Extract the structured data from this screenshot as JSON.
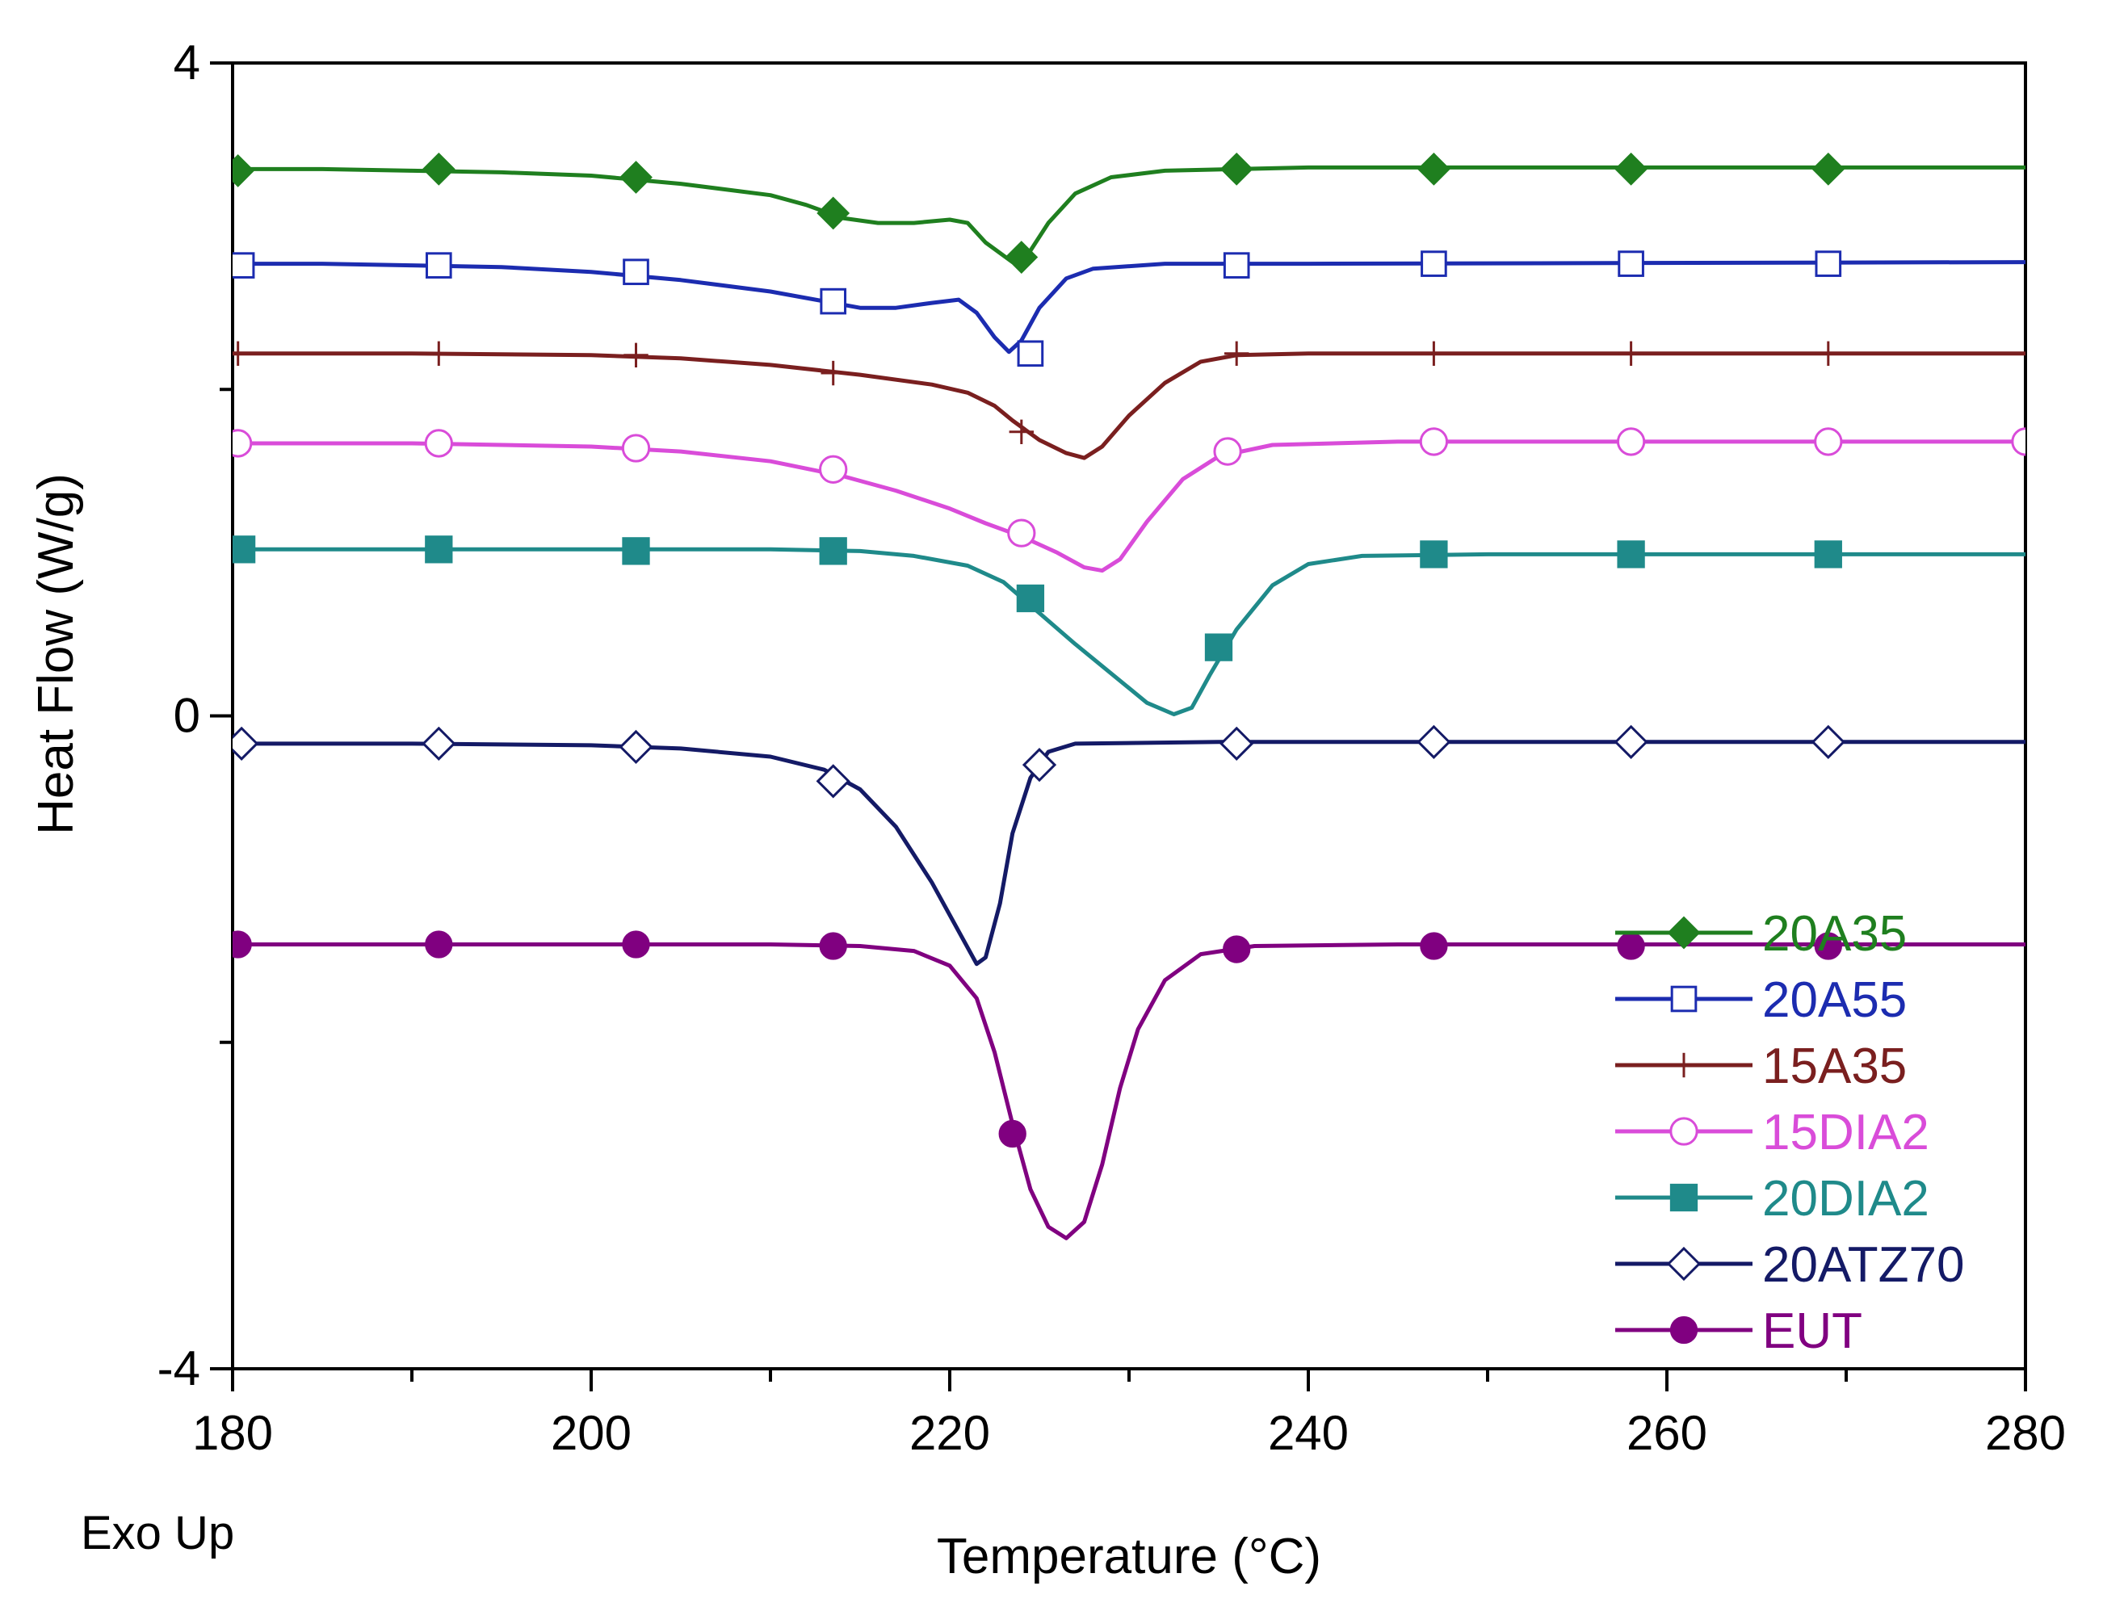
{
  "chart_data": {
    "type": "line",
    "title": "",
    "xlabel": "Temperature (°C)",
    "ylabel": "Heat Flow (W/g)",
    "annotation": "Exo Up",
    "xlim": [
      180,
      280
    ],
    "ylim": [
      -4,
      4
    ],
    "x_ticks": [
      180,
      200,
      220,
      240,
      260,
      280
    ],
    "x_tick_labels": [
      "180",
      "200",
      "220",
      "240",
      "260",
      "280"
    ],
    "y_ticks": [
      -4,
      0,
      4
    ],
    "y_tick_labels": [
      "-4",
      "0",
      "4"
    ],
    "grid": false,
    "legend_position": "bottom-right",
    "series": [
      {
        "name": "20A35",
        "color": "#1f7f1f",
        "marker": "diamond-filled",
        "points": [
          [
            180,
            3.35
          ],
          [
            185,
            3.35
          ],
          [
            190,
            3.34
          ],
          [
            195,
            3.33
          ],
          [
            200,
            3.31
          ],
          [
            205,
            3.26
          ],
          [
            210,
            3.19
          ],
          [
            212,
            3.13
          ],
          [
            214,
            3.05
          ],
          [
            216,
            3.02
          ],
          [
            218,
            3.02
          ],
          [
            220,
            3.04
          ],
          [
            221,
            3.02
          ],
          [
            222,
            2.9
          ],
          [
            223.5,
            2.78
          ],
          [
            224.5,
            2.85
          ],
          [
            225.5,
            3.02
          ],
          [
            227,
            3.2
          ],
          [
            229,
            3.3
          ],
          [
            232,
            3.34
          ],
          [
            240,
            3.36
          ],
          [
            280,
            3.36
          ]
        ],
        "markers": [
          [
            180.3,
            3.34
          ],
          [
            191.5,
            3.35
          ],
          [
            202.5,
            3.3
          ],
          [
            213.5,
            3.08
          ],
          [
            224,
            2.81
          ],
          [
            236,
            3.35
          ],
          [
            247,
            3.35
          ],
          [
            258,
            3.35
          ],
          [
            269,
            3.35
          ]
        ]
      },
      {
        "name": "20A55",
        "color": "#1c2cb0",
        "marker": "square-open",
        "points": [
          [
            180,
            2.77
          ],
          [
            185,
            2.77
          ],
          [
            190,
            2.76
          ],
          [
            195,
            2.75
          ],
          [
            200,
            2.72
          ],
          [
            205,
            2.67
          ],
          [
            210,
            2.6
          ],
          [
            213,
            2.54
          ],
          [
            215,
            2.5
          ],
          [
            217,
            2.5
          ],
          [
            219,
            2.53
          ],
          [
            220.5,
            2.55
          ],
          [
            221.5,
            2.47
          ],
          [
            222.5,
            2.32
          ],
          [
            223.3,
            2.23
          ],
          [
            224,
            2.3
          ],
          [
            225,
            2.5
          ],
          [
            226.5,
            2.68
          ],
          [
            228,
            2.74
          ],
          [
            232,
            2.77
          ],
          [
            240,
            2.77
          ],
          [
            280,
            2.78
          ]
        ],
        "markers": [
          [
            180.5,
            2.76
          ],
          [
            191.5,
            2.76
          ],
          [
            202.5,
            2.72
          ],
          [
            213.5,
            2.54
          ],
          [
            224.5,
            2.22
          ],
          [
            236,
            2.76
          ],
          [
            247,
            2.77
          ],
          [
            258,
            2.77
          ],
          [
            269,
            2.77
          ]
        ]
      },
      {
        "name": "15A35",
        "color": "#7a1f1f",
        "marker": "plus",
        "points": [
          [
            180,
            2.22
          ],
          [
            190,
            2.22
          ],
          [
            200,
            2.21
          ],
          [
            205,
            2.19
          ],
          [
            210,
            2.15
          ],
          [
            215,
            2.09
          ],
          [
            219,
            2.03
          ],
          [
            221,
            1.98
          ],
          [
            222.5,
            1.9
          ],
          [
            223.5,
            1.81
          ],
          [
            225,
            1.69
          ],
          [
            226.5,
            1.61
          ],
          [
            227.5,
            1.58
          ],
          [
            228.5,
            1.65
          ],
          [
            230,
            1.84
          ],
          [
            232,
            2.04
          ],
          [
            234,
            2.17
          ],
          [
            236,
            2.21
          ],
          [
            240,
            2.22
          ],
          [
            280,
            2.22
          ]
        ],
        "markers": [
          [
            180.3,
            2.22
          ],
          [
            191.5,
            2.22
          ],
          [
            202.5,
            2.21
          ],
          [
            213.5,
            2.1
          ],
          [
            224,
            1.74
          ],
          [
            236,
            2.22
          ],
          [
            247,
            2.22
          ],
          [
            258,
            2.22
          ],
          [
            269,
            2.22
          ]
        ]
      },
      {
        "name": "15DIA2",
        "color": "#d94cd9",
        "marker": "circle-open",
        "points": [
          [
            180,
            1.67
          ],
          [
            190,
            1.67
          ],
          [
            200,
            1.65
          ],
          [
            205,
            1.62
          ],
          [
            210,
            1.56
          ],
          [
            214,
            1.47
          ],
          [
            217,
            1.38
          ],
          [
            220,
            1.27
          ],
          [
            222,
            1.18
          ],
          [
            224,
            1.1
          ],
          [
            226,
            1.0
          ],
          [
            227.5,
            0.91
          ],
          [
            228.5,
            0.89
          ],
          [
            229.5,
            0.96
          ],
          [
            231,
            1.19
          ],
          [
            233,
            1.45
          ],
          [
            235,
            1.59
          ],
          [
            238,
            1.66
          ],
          [
            245,
            1.68
          ],
          [
            280,
            1.68
          ]
        ],
        "markers": [
          [
            180.3,
            1.67
          ],
          [
            191.5,
            1.67
          ],
          [
            202.5,
            1.64
          ],
          [
            213.5,
            1.51
          ],
          [
            224,
            1.12
          ],
          [
            235.5,
            1.62
          ],
          [
            247,
            1.68
          ],
          [
            258,
            1.68
          ],
          [
            269,
            1.68
          ],
          [
            280,
            1.68
          ]
        ]
      },
      {
        "name": "20DIA2",
        "color": "#1f8a8a",
        "marker": "square-filled",
        "points": [
          [
            180,
            1.02
          ],
          [
            190,
            1.02
          ],
          [
            200,
            1.02
          ],
          [
            210,
            1.02
          ],
          [
            215,
            1.01
          ],
          [
            218,
            0.98
          ],
          [
            221,
            0.92
          ],
          [
            223,
            0.82
          ],
          [
            225,
            0.63
          ],
          [
            227,
            0.44
          ],
          [
            229,
            0.26
          ],
          [
            231,
            0.08
          ],
          [
            232.5,
            0.01
          ],
          [
            233.5,
            0.05
          ],
          [
            234.5,
            0.25
          ],
          [
            236,
            0.53
          ],
          [
            238,
            0.8
          ],
          [
            240,
            0.93
          ],
          [
            243,
            0.98
          ],
          [
            250,
            0.99
          ],
          [
            280,
            0.99
          ]
        ],
        "markers": [
          [
            180.5,
            1.02
          ],
          [
            191.5,
            1.02
          ],
          [
            202.5,
            1.01
          ],
          [
            213.5,
            1.01
          ],
          [
            224.5,
            0.72
          ],
          [
            235,
            0.42
          ],
          [
            247,
            0.99
          ],
          [
            258,
            0.99
          ],
          [
            269,
            0.99
          ]
        ]
      },
      {
        "name": "20ATZ70",
        "color": "#141a66",
        "marker": "diamond-open",
        "points": [
          [
            180,
            -0.17
          ],
          [
            190,
            -0.17
          ],
          [
            200,
            -0.18
          ],
          [
            205,
            -0.2
          ],
          [
            210,
            -0.25
          ],
          [
            213,
            -0.33
          ],
          [
            215,
            -0.45
          ],
          [
            217,
            -0.68
          ],
          [
            219,
            -1.02
          ],
          [
            220.5,
            -1.32
          ],
          [
            221.5,
            -1.52
          ],
          [
            222,
            -1.48
          ],
          [
            222.8,
            -1.15
          ],
          [
            223.5,
            -0.72
          ],
          [
            224.5,
            -0.38
          ],
          [
            225.5,
            -0.22
          ],
          [
            227,
            -0.17
          ],
          [
            235,
            -0.16
          ],
          [
            280,
            -0.16
          ]
        ],
        "markers": [
          [
            180.5,
            -0.17
          ],
          [
            191.5,
            -0.17
          ],
          [
            202.5,
            -0.19
          ],
          [
            213.5,
            -0.4
          ],
          [
            225,
            -0.3
          ],
          [
            236,
            -0.17
          ],
          [
            247,
            -0.16
          ],
          [
            258,
            -0.16
          ],
          [
            269,
            -0.16
          ]
        ]
      },
      {
        "name": "EUT",
        "color": "#800080",
        "marker": "circle-filled",
        "points": [
          [
            180,
            -1.4
          ],
          [
            190,
            -1.4
          ],
          [
            200,
            -1.4
          ],
          [
            210,
            -1.4
          ],
          [
            215,
            -1.41
          ],
          [
            218,
            -1.44
          ],
          [
            220,
            -1.53
          ],
          [
            221.5,
            -1.73
          ],
          [
            222.5,
            -2.06
          ],
          [
            223.5,
            -2.5
          ],
          [
            224.5,
            -2.9
          ],
          [
            225.5,
            -3.13
          ],
          [
            226.5,
            -3.2
          ],
          [
            227.5,
            -3.1
          ],
          [
            228.5,
            -2.75
          ],
          [
            229.5,
            -2.28
          ],
          [
            230.5,
            -1.92
          ],
          [
            232,
            -1.62
          ],
          [
            234,
            -1.46
          ],
          [
            237,
            -1.41
          ],
          [
            245,
            -1.4
          ],
          [
            280,
            -1.4
          ]
        ],
        "markers": [
          [
            180.3,
            -1.4
          ],
          [
            191.5,
            -1.4
          ],
          [
            202.5,
            -1.4
          ],
          [
            213.5,
            -1.41
          ],
          [
            223.5,
            -2.56
          ],
          [
            236,
            -1.43
          ],
          [
            247,
            -1.41
          ],
          [
            258,
            -1.41
          ],
          [
            269,
            -1.41
          ]
        ]
      }
    ]
  }
}
